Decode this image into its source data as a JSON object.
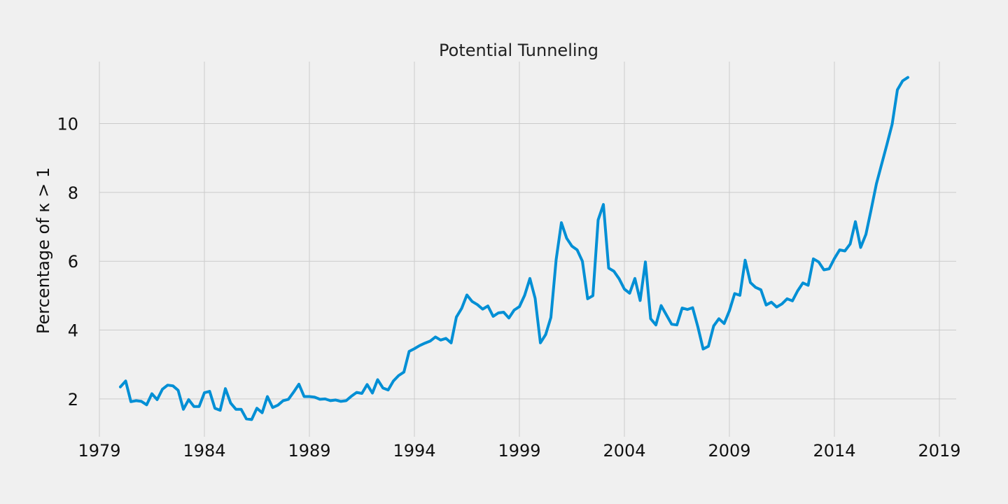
{
  "chart_data": {
    "type": "line",
    "title": "Potential Tunneling",
    "xlabel": "",
    "ylabel": "Percentage of κ > 1",
    "xlim": [
      1979.0,
      2019.8
    ],
    "ylim": [
      0.9,
      11.8
    ],
    "xticks": [
      1979,
      1984,
      1989,
      1994,
      1999,
      2004,
      2009,
      2014,
      2019
    ],
    "yticks": [
      2,
      4,
      6,
      8,
      10
    ],
    "grid": true,
    "color": "#008fd5",
    "series": [
      {
        "x": [
          1980.0,
          1980.25,
          1980.5,
          1980.75,
          1981.0,
          1981.25,
          1981.5,
          1981.75,
          1982.0,
          1982.25,
          1982.5,
          1982.75,
          1983.0,
          1983.25,
          1983.5,
          1983.75,
          1984.0,
          1984.25,
          1984.5,
          1984.75,
          1985.0,
          1985.25,
          1985.5,
          1985.75,
          1986.0,
          1986.25,
          1986.5,
          1986.75,
          1987.0,
          1987.25,
          1987.5,
          1987.75,
          1988.0,
          1988.25,
          1988.5,
          1988.75,
          1989.0,
          1989.25,
          1989.5,
          1989.75,
          1990.0,
          1990.25,
          1990.5,
          1990.75,
          1991.0,
          1991.25,
          1991.5,
          1991.75,
          1992.0,
          1992.25,
          1992.5,
          1992.75,
          1993.0,
          1993.25,
          1993.5,
          1993.75,
          1994.0,
          1994.25,
          1994.5,
          1994.75,
          1995.0,
          1995.25,
          1995.5,
          1995.75,
          1996.0,
          1996.25,
          1996.5,
          1996.75,
          1997.0,
          1997.25,
          1997.5,
          1997.75,
          1998.0,
          1998.25,
          1998.5,
          1998.75,
          1999.0,
          1999.25,
          1999.5,
          1999.75,
          2000.0,
          2000.25,
          2000.5,
          2000.75,
          2001.0,
          2001.25,
          2001.5,
          2001.75,
          2002.0,
          2002.25,
          2002.5,
          2002.75,
          2003.0,
          2003.25,
          2003.5,
          2003.75,
          2004.0,
          2004.25,
          2004.5,
          2004.75,
          2005.0,
          2005.25,
          2005.5,
          2005.75,
          2006.0,
          2006.25,
          2006.5,
          2006.75,
          2007.0,
          2007.25,
          2007.5,
          2007.75,
          2008.0,
          2008.25,
          2008.5,
          2008.75,
          2009.0,
          2009.25,
          2009.5,
          2009.75,
          2010.0,
          2010.25,
          2010.5,
          2010.75,
          2011.0,
          2011.25,
          2011.5,
          2011.75,
          2012.0,
          2012.25,
          2012.5,
          2012.75,
          2013.0,
          2013.25,
          2013.5,
          2013.75,
          2014.0,
          2014.25,
          2014.5,
          2014.75,
          2015.0,
          2015.25,
          2015.5,
          2015.75,
          2016.0,
          2016.25,
          2016.5,
          2016.75,
          2017.0,
          2017.25,
          2017.5
        ],
        "y": [
          2.35,
          2.52,
          1.92,
          1.95,
          1.93,
          1.83,
          2.15,
          1.98,
          2.28,
          2.4,
          2.38,
          2.25,
          1.7,
          1.98,
          1.78,
          1.78,
          2.18,
          2.22,
          1.73,
          1.67,
          2.3,
          1.88,
          1.7,
          1.7,
          1.42,
          1.4,
          1.73,
          1.6,
          2.07,
          1.75,
          1.82,
          1.95,
          1.99,
          2.2,
          2.43,
          2.07,
          2.07,
          2.05,
          1.99,
          2.0,
          1.95,
          1.97,
          1.93,
          1.95,
          2.08,
          2.19,
          2.16,
          2.42,
          2.17,
          2.56,
          2.32,
          2.26,
          2.52,
          2.68,
          2.78,
          3.38,
          3.46,
          3.55,
          3.62,
          3.68,
          3.8,
          3.71,
          3.76,
          3.63,
          4.38,
          4.63,
          5.02,
          4.83,
          4.74,
          4.61,
          4.7,
          4.4,
          4.5,
          4.52,
          4.35,
          4.58,
          4.68,
          5.01,
          5.5,
          4.92,
          3.63,
          3.87,
          4.37,
          6.05,
          7.12,
          6.67,
          6.44,
          6.33,
          6.0,
          4.91,
          5.0,
          7.2,
          7.65,
          5.8,
          5.71,
          5.49,
          5.19,
          5.07,
          5.5,
          4.86,
          5.98,
          4.33,
          4.15,
          4.71,
          4.44,
          4.17,
          4.15,
          4.64,
          4.6,
          4.65,
          4.09,
          3.45,
          3.53,
          4.12,
          4.33,
          4.19,
          4.56,
          5.06,
          5.01,
          6.03,
          5.38,
          5.24,
          5.17,
          4.73,
          4.81,
          4.67,
          4.76,
          4.91,
          4.85,
          5.14,
          5.37,
          5.3,
          6.07,
          5.98,
          5.75,
          5.78,
          6.08,
          6.33,
          6.3,
          6.5,
          7.15,
          6.4,
          6.78,
          7.5,
          8.25,
          8.82,
          9.39,
          9.98,
          10.98,
          11.24,
          11.34
        ]
      }
    ]
  }
}
